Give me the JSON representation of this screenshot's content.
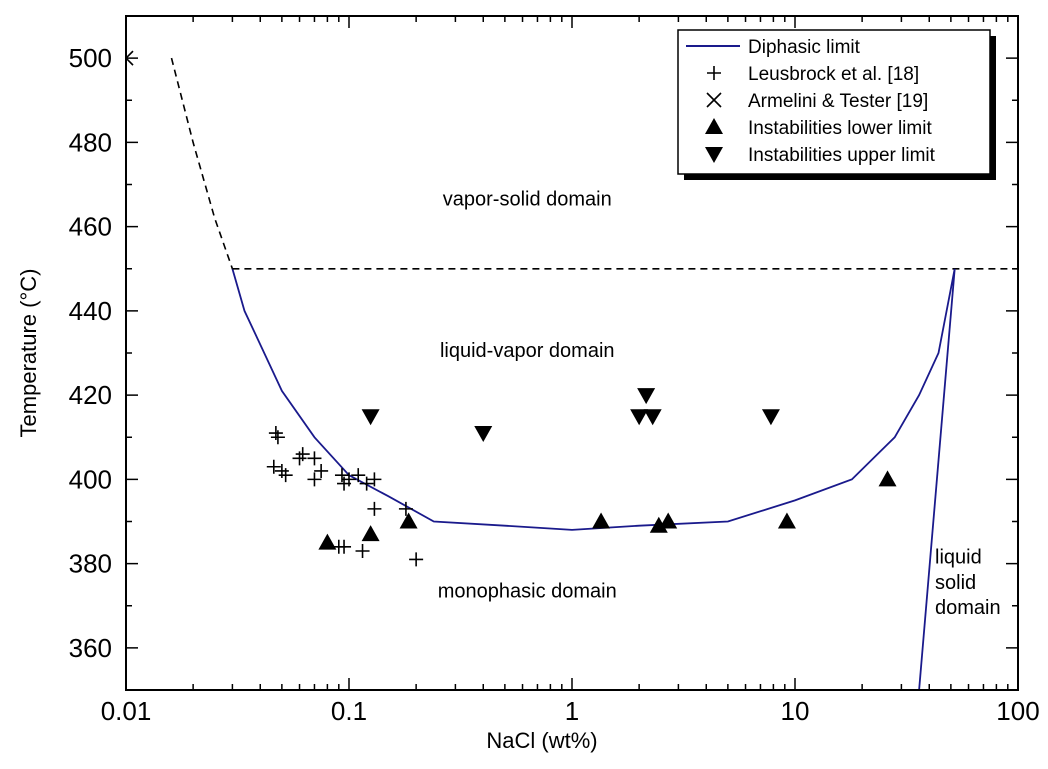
{
  "chart_data": {
    "type": "scatter",
    "xlabel": "NaCl (wt%)",
    "ylabel": "Temperature (°C)",
    "x_scale": "log",
    "xlim": [
      0.01,
      100
    ],
    "ylim": [
      350,
      510
    ],
    "x_ticks": [
      0.01,
      0.1,
      1,
      10,
      100
    ],
    "x_tick_labels": [
      "0.01",
      "0.1",
      "1",
      "10",
      "100"
    ],
    "y_ticks": [
      360,
      380,
      400,
      420,
      440,
      460,
      480,
      500
    ],
    "y_tick_labels": [
      "360",
      "380",
      "400",
      "420",
      "440",
      "460",
      "480",
      "500"
    ],
    "legend_position": "top-right",
    "legend": [
      {
        "label": "Diphasic limit",
        "marker": "line",
        "color": "#1a1a8c"
      },
      {
        "label": "Leusbrock et al. [18]",
        "marker": "plus",
        "color": "#000000"
      },
      {
        "label": "Armelini & Tester [19]",
        "marker": "cross",
        "color": "#000000"
      },
      {
        "label": "Instabilities lower limit",
        "marker": "triangle-up",
        "color": "#000000"
      },
      {
        "label": "Instabilities upper limit",
        "marker": "triangle-down",
        "color": "#000000"
      }
    ],
    "series": [
      {
        "name": "Diphasic limit",
        "kind": "line",
        "color": "#1a1a8c",
        "x": [
          0.03,
          0.034,
          0.04,
          0.05,
          0.07,
          0.1,
          0.15,
          0.24,
          0.5,
          1,
          2,
          5,
          10,
          18,
          28,
          36,
          44,
          52
        ],
        "y": [
          450,
          440,
          432,
          421,
          410,
          401,
          396,
          390,
          389,
          388,
          389,
          390,
          395,
          400,
          410,
          420,
          430,
          450
        ]
      },
      {
        "name": "Diphasic limit extrapolation",
        "kind": "dashed-line",
        "color": "#000000",
        "x": [
          0.016,
          0.02,
          0.025,
          0.03
        ],
        "y": [
          500,
          480,
          462,
          450
        ]
      },
      {
        "name": "450 °C limit",
        "kind": "dashed-line",
        "color": "#000000",
        "x": [
          0.03,
          100
        ],
        "y": [
          450,
          450
        ]
      },
      {
        "name": "Liquid-solid boundary",
        "kind": "line",
        "color": "#1a1a8c",
        "x": [
          52,
          36
        ],
        "y": [
          450,
          350
        ]
      },
      {
        "name": "Leusbrock et al. [18]",
        "kind": "marker",
        "marker": "plus",
        "x": [
          0.047,
          0.048,
          0.046,
          0.05,
          0.052,
          0.06,
          0.062,
          0.07,
          0.07,
          0.075,
          0.093,
          0.095,
          0.1,
          0.11,
          0.12,
          0.13,
          0.13,
          0.18,
          0.09,
          0.095,
          0.115,
          0.2
        ],
        "y": [
          411,
          410,
          403,
          402,
          401,
          405,
          406,
          405,
          400,
          402,
          401,
          399,
          400,
          401,
          399,
          400,
          393,
          393,
          384,
          384,
          383,
          381
        ]
      },
      {
        "name": "Armelini & Tester [19]",
        "kind": "marker",
        "marker": "cross",
        "x": [
          0.01
        ],
        "y": [
          500
        ]
      },
      {
        "name": "Instabilities lower limit",
        "kind": "marker",
        "marker": "triangle-up",
        "x": [
          0.08,
          0.125,
          0.185,
          1.35,
          2.45,
          2.7,
          9.2,
          26
        ],
        "y": [
          385,
          387,
          390,
          390,
          389,
          390,
          390,
          400
        ]
      },
      {
        "name": "Instabilities upper limit",
        "kind": "marker",
        "marker": "triangle-down",
        "x": [
          0.125,
          0.4,
          2.0,
          2.15,
          2.3,
          7.8
        ],
        "y": [
          415,
          411,
          415,
          420,
          415,
          415
        ]
      }
    ],
    "annotations": [
      {
        "text": "vapor-solid domain",
        "x": 0.4,
        "y": 465
      },
      {
        "text": "liquid-vapor domain",
        "x": 0.4,
        "y": 429
      },
      {
        "text": "monophasic domain",
        "x": 0.4,
        "y": 372
      },
      {
        "text": "liquid",
        "x": 60,
        "y": 380
      },
      {
        "text": "solid",
        "x": 60,
        "y": 374
      },
      {
        "text": "domain",
        "x": 60,
        "y": 368
      }
    ]
  }
}
